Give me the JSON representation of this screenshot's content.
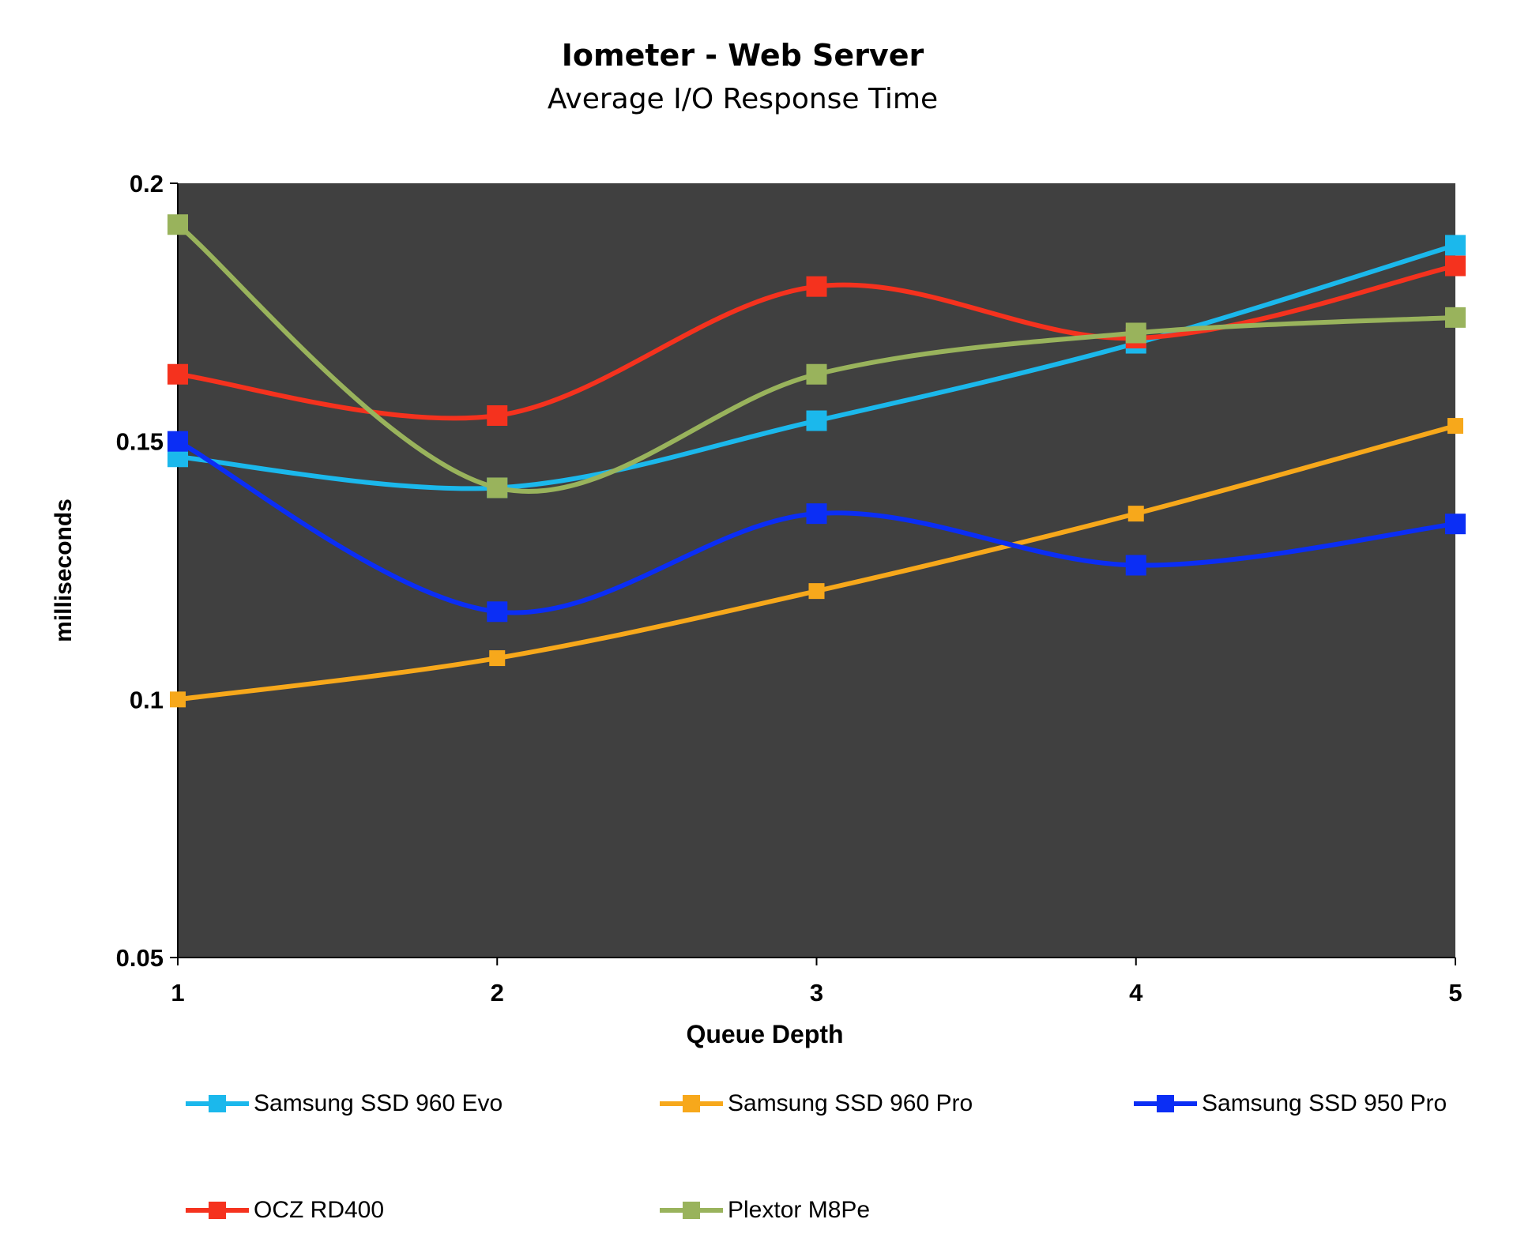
{
  "chart_data": {
    "type": "line",
    "title": "Iometer - Web Server",
    "subtitle": "Average I/O Response Time",
    "xlabel": "Queue Depth",
    "ylabel": "milliseconds",
    "x": [
      1,
      2,
      3,
      4,
      5
    ],
    "x_ticks": [
      "1",
      "2",
      "3",
      "4",
      "5"
    ],
    "y_ticks": [
      "0.05",
      "0.1",
      "0.15",
      "0.2"
    ],
    "ylim": [
      0.05,
      0.2
    ],
    "grid": false,
    "plot_background": "#404040",
    "smoothed": true,
    "legend_position": "bottom",
    "series": [
      {
        "name": "Samsung SSD 960 Evo",
        "color": "#1BB8EC",
        "values": [
          0.147,
          0.141,
          0.154,
          0.169,
          0.188
        ]
      },
      {
        "name": "Samsung SSD 960 Pro",
        "color": "#F7A81B",
        "values": [
          0.1,
          0.108,
          0.121,
          0.136,
          0.153
        ]
      },
      {
        "name": "Samsung SSD 950 Pro",
        "color": "#0B2EF5",
        "values": [
          0.15,
          0.117,
          0.136,
          0.126,
          0.134
        ]
      },
      {
        "name": "OCZ RD400",
        "color": "#F5321E",
        "values": [
          0.163,
          0.155,
          0.18,
          0.17,
          0.184
        ]
      },
      {
        "name": "Plextor M8Pe",
        "color": "#99B35C",
        "values": [
          0.192,
          0.141,
          0.163,
          0.171,
          0.174
        ]
      }
    ]
  }
}
